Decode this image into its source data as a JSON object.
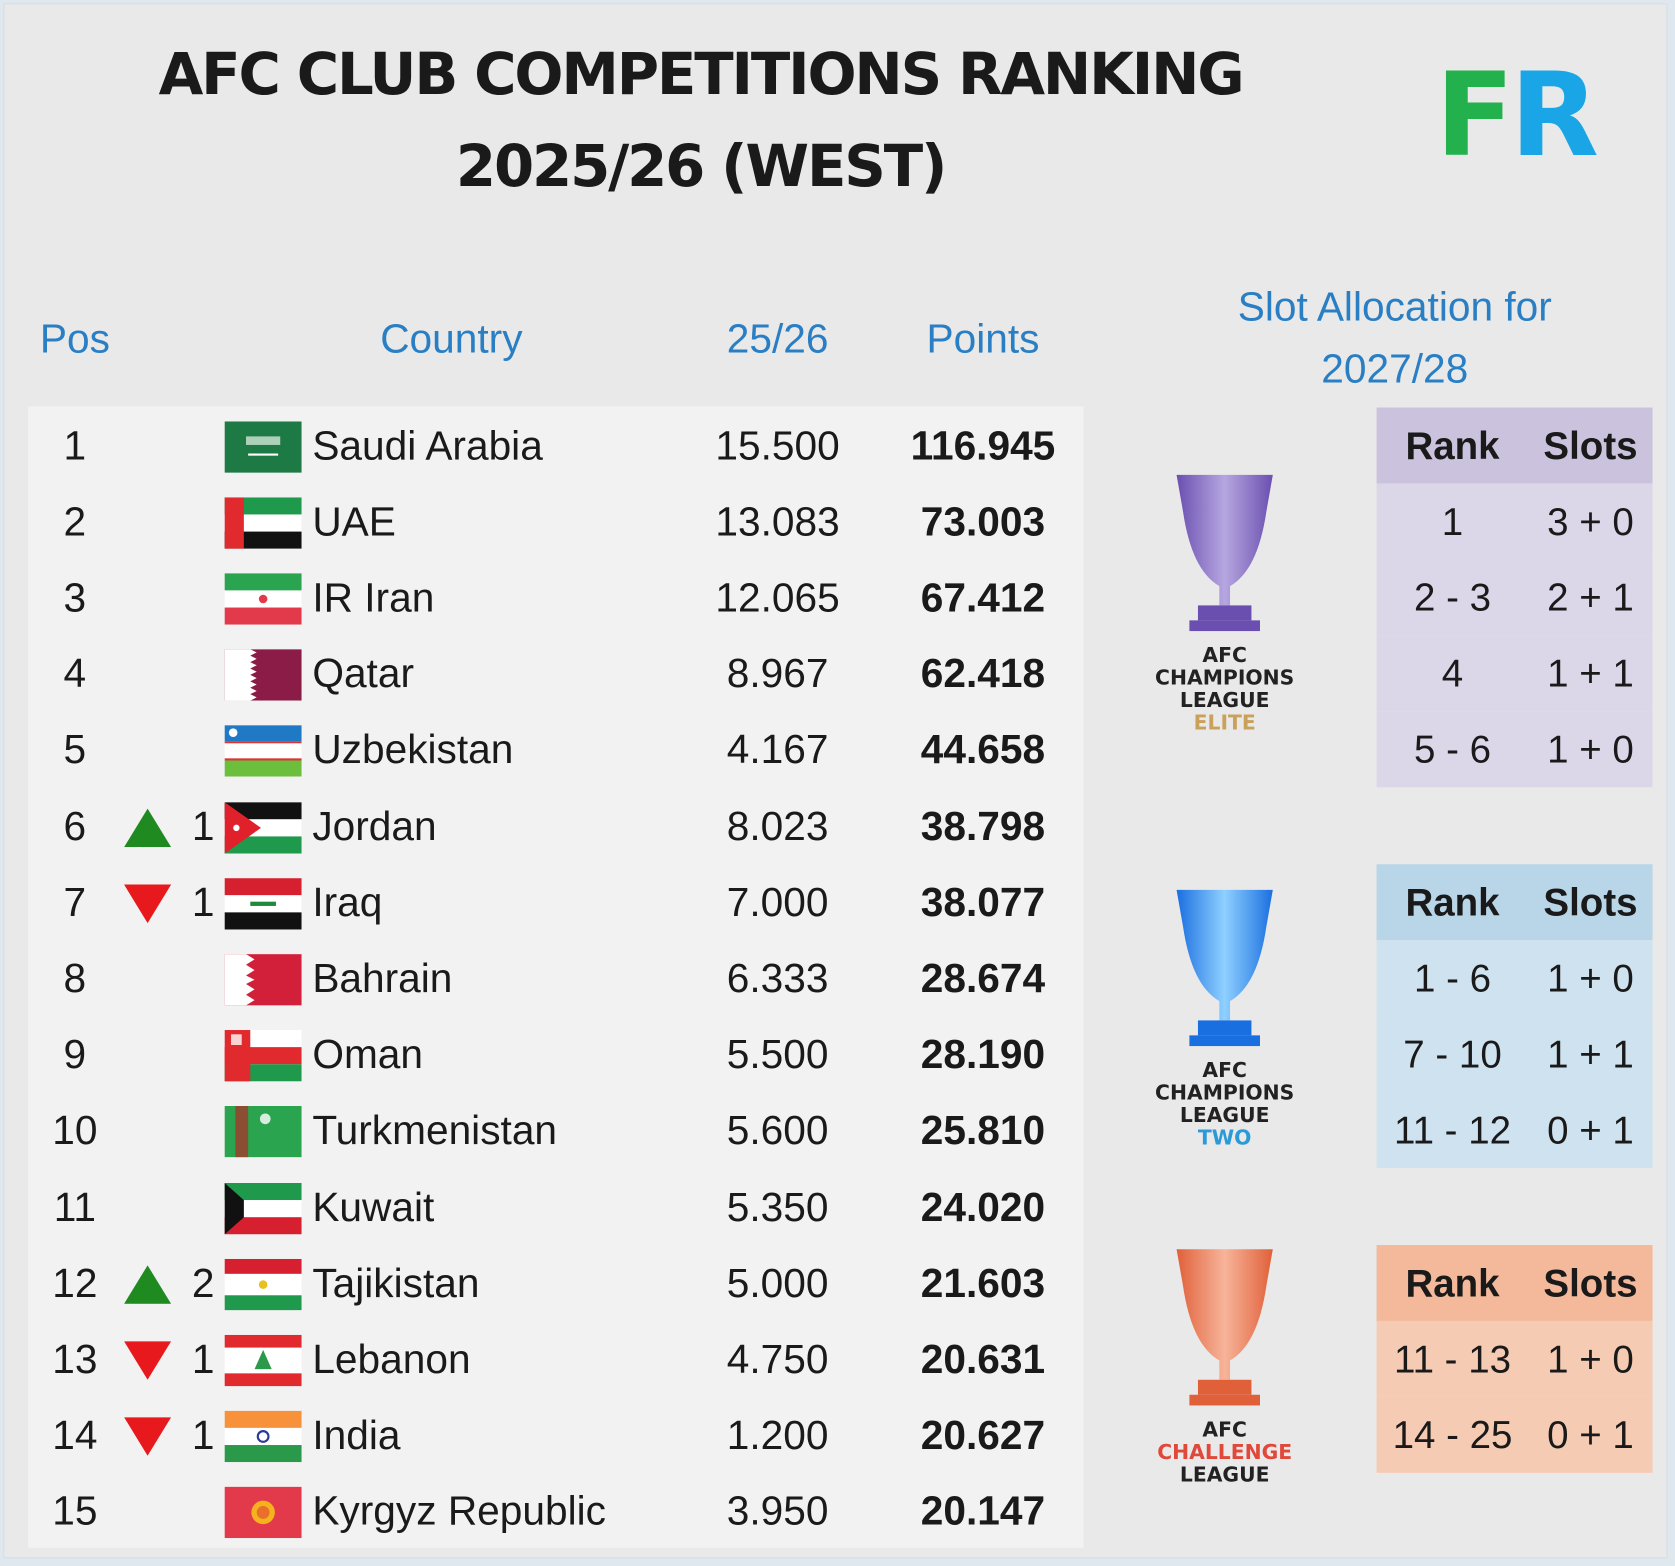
{
  "title": {
    "line1": "AFC CLUB COMPETITIONS RANKING",
    "line2": "2025/26 (WEST)"
  },
  "logo": {
    "left": "F",
    "right": "R",
    "colors": {
      "left": "#22b14c",
      "right": "#1aa6e6"
    }
  },
  "headers": {
    "pos": "Pos",
    "country": "Country",
    "season": "25/26",
    "points": "Points"
  },
  "slot_heading": {
    "line1": "Slot Allocation for",
    "line2": "2027/28"
  },
  "rows": [
    {
      "pos": "1",
      "change": "",
      "dir": "",
      "country": "Saudi Arabia",
      "flag": "saudi-arabia",
      "season": "15.500",
      "points": "116.945"
    },
    {
      "pos": "2",
      "change": "",
      "dir": "",
      "country": "UAE",
      "flag": "uae",
      "season": "13.083",
      "points": "73.003"
    },
    {
      "pos": "3",
      "change": "",
      "dir": "",
      "country": "IR Iran",
      "flag": "iran",
      "season": "12.065",
      "points": "67.412"
    },
    {
      "pos": "4",
      "change": "",
      "dir": "",
      "country": "Qatar",
      "flag": "qatar",
      "season": "8.967",
      "points": "62.418"
    },
    {
      "pos": "5",
      "change": "",
      "dir": "",
      "country": "Uzbekistan",
      "flag": "uzbekistan",
      "season": "4.167",
      "points": "44.658"
    },
    {
      "pos": "6",
      "change": "1",
      "dir": "up",
      "country": "Jordan",
      "flag": "jordan",
      "season": "8.023",
      "points": "38.798"
    },
    {
      "pos": "7",
      "change": "1",
      "dir": "down",
      "country": "Iraq",
      "flag": "iraq",
      "season": "7.000",
      "points": "38.077"
    },
    {
      "pos": "8",
      "change": "",
      "dir": "",
      "country": "Bahrain",
      "flag": "bahrain",
      "season": "6.333",
      "points": "28.674"
    },
    {
      "pos": "9",
      "change": "",
      "dir": "",
      "country": "Oman",
      "flag": "oman",
      "season": "5.500",
      "points": "28.190"
    },
    {
      "pos": "10",
      "change": "",
      "dir": "",
      "country": "Turkmenistan",
      "flag": "turkmenistan",
      "season": "5.600",
      "points": "25.810"
    },
    {
      "pos": "11",
      "change": "",
      "dir": "",
      "country": "Kuwait",
      "flag": "kuwait",
      "season": "5.350",
      "points": "24.020"
    },
    {
      "pos": "12",
      "change": "2",
      "dir": "up",
      "country": "Tajikistan",
      "flag": "tajikistan",
      "season": "5.000",
      "points": "21.603"
    },
    {
      "pos": "13",
      "change": "1",
      "dir": "down",
      "country": "Lebanon",
      "flag": "lebanon",
      "season": "4.750",
      "points": "20.631"
    },
    {
      "pos": "14",
      "change": "1",
      "dir": "down",
      "country": "India",
      "flag": "india",
      "season": "1.200",
      "points": "20.627"
    },
    {
      "pos": "15",
      "change": "",
      "dir": "",
      "country": "Kyrgyz Republic",
      "flag": "kyrgyzstan",
      "season": "3.950",
      "points": "20.147"
    }
  ],
  "slot_tables": [
    {
      "competition": [
        "AFC",
        "CHAMPIONS",
        "LEAGUE",
        "ELITE"
      ],
      "header": [
        "Rank",
        "Slots"
      ],
      "rows": [
        [
          "1",
          "3 + 0"
        ],
        [
          "2 - 3",
          "2 + 1"
        ],
        [
          "4",
          "1 + 1"
        ],
        [
          "5 - 6",
          "1 + 0"
        ]
      ],
      "color_header": "#cbc3de",
      "color_body": "#dcd6e9"
    },
    {
      "competition": [
        "AFC",
        "CHAMPIONS",
        "LEAGUE",
        "TWO"
      ],
      "header": [
        "Rank",
        "Slots"
      ],
      "rows": [
        [
          "1 - 6",
          "1 + 0"
        ],
        [
          "7 - 10",
          "1 + 1"
        ],
        [
          "11 - 12",
          "0 + 1"
        ]
      ],
      "color_header": "#b9d5e8",
      "color_body": "#cfe2ef"
    },
    {
      "competition": [
        "AFC",
        "CHALLENGE",
        "LEAGUE"
      ],
      "header": [
        "Rank",
        "Slots"
      ],
      "rows": [
        [
          "11 - 13",
          "1 + 0"
        ],
        [
          "14 - 25",
          "0 + 1"
        ]
      ],
      "color_header": "#f3b99a",
      "color_body": "#f6cbb3"
    }
  ],
  "colors": {
    "up": "#1f8a1f",
    "down": "#e8191c",
    "header": "#2a7fc4"
  }
}
